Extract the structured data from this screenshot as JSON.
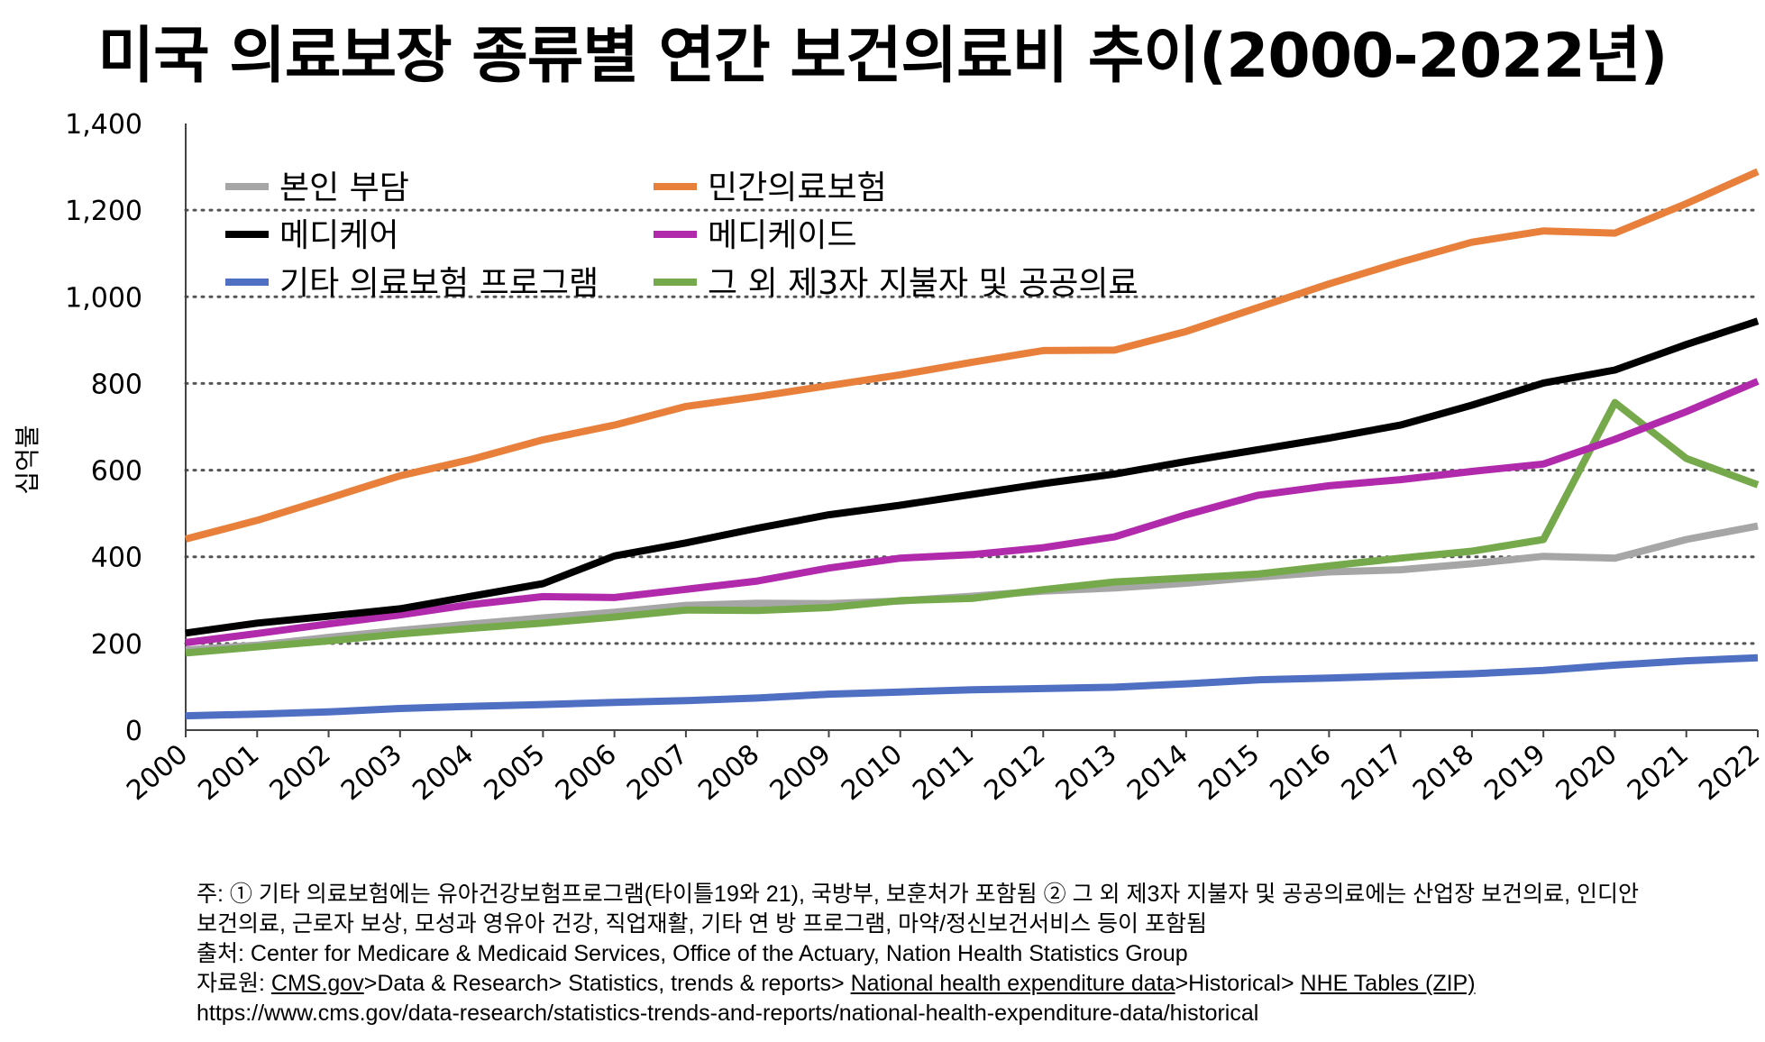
{
  "title": "미국 의료보장 종류별 연간 보건의료비 추이(2000-2022년)",
  "chart_data": {
    "type": "line",
    "ylabel": "십억불",
    "ylim": [
      0,
      1400
    ],
    "yticks": [
      "0",
      "200",
      "400",
      "600",
      "800",
      "1,000",
      "1,200",
      "1,400"
    ],
    "grid": "horizontal dotted",
    "legend_position": "top-left inside",
    "x": [
      "2000",
      "2001",
      "2002",
      "2003",
      "2004",
      "2005",
      "2006",
      "2007",
      "2008",
      "2009",
      "2010",
      "2011",
      "2012",
      "2013",
      "2014",
      "2015",
      "2016",
      "2017",
      "2018",
      "2019",
      "2020",
      "2021",
      "2022"
    ],
    "series": [
      {
        "name": "본인 부담",
        "color": "#a6a6a6",
        "values": [
          185,
          196,
          214,
          230,
          245,
          259,
          272,
          288,
          293,
          292,
          298,
          309,
          321,
          328,
          339,
          353,
          365,
          370,
          384,
          401,
          397,
          440,
          471
        ]
      },
      {
        "name": "민간의료보험",
        "color": "#e8803c",
        "values": [
          441,
          484,
          535,
          587,
          625,
          670,
          704,
          747,
          770,
          795,
          820,
          849,
          876,
          877,
          920,
          975,
          1030,
          1080,
          1126,
          1152,
          1147,
          1215,
          1289
        ]
      },
      {
        "name": "메디케어",
        "color": "#000000",
        "values": [
          224,
          247,
          263,
          280,
          309,
          338,
          402,
          432,
          466,
          497,
          519,
          544,
          569,
          591,
          620,
          647,
          674,
          704,
          750,
          801,
          831,
          890,
          944
        ]
      },
      {
        "name": "메디케이드",
        "color": "#b02aab",
        "values": [
          202,
          223,
          245,
          266,
          290,
          308,
          306,
          325,
          344,
          374,
          397,
          405,
          421,
          446,
          497,
          542,
          564,
          578,
          597,
          614,
          671,
          735,
          805
        ]
      },
      {
        "name": "기타 의료보험 프로그램",
        "color": "#4f6fc2",
        "values": [
          33,
          37,
          42,
          50,
          55,
          59,
          64,
          68,
          74,
          83,
          88,
          93,
          96,
          99,
          107,
          116,
          120,
          125,
          130,
          138,
          150,
          160,
          167
        ]
      },
      {
        "name": "그 외 제3자 지불자 및 공공의료",
        "color": "#76a94c",
        "values": [
          178,
          192,
          206,
          222,
          235,
          247,
          261,
          277,
          276,
          283,
          299,
          304,
          324,
          342,
          351,
          360,
          379,
          397,
          413,
          440,
          756,
          627,
          566
        ]
      }
    ]
  },
  "notes": {
    "line1": "주: ① 기타 의료보험에는 유아건강보험프로그램(타이틀19와 21), 국방부, 보훈처가 포함됨  ② 그 외 제3자 지불자 및 공공의료에는 산업장 보건의료, 인디안",
    "line2": "보건의료, 근로자 보상, 모성과 영유아 건강, 직업재활, 기타 연  방 프로그램, 마약/정신보건서비스 등이 포함됨",
    "line3": "출처: Center for Medicare & Medicaid Services, Office of the Actuary, Nation Health Statistics Group",
    "line4_prefix": "자료원: ",
    "line4_link1": "CMS.gov",
    "line4_mid": ">Data & Research> Statistics, trends & reports> ",
    "line4_link2": "National health expenditure data",
    "line4_mid2": ">Historical> ",
    "line4_link3": "NHE Tables (ZIP)",
    "line5": "https://www.cms.gov/data-research/statistics-trends-and-reports/national-health-expenditure-data/historical"
  }
}
